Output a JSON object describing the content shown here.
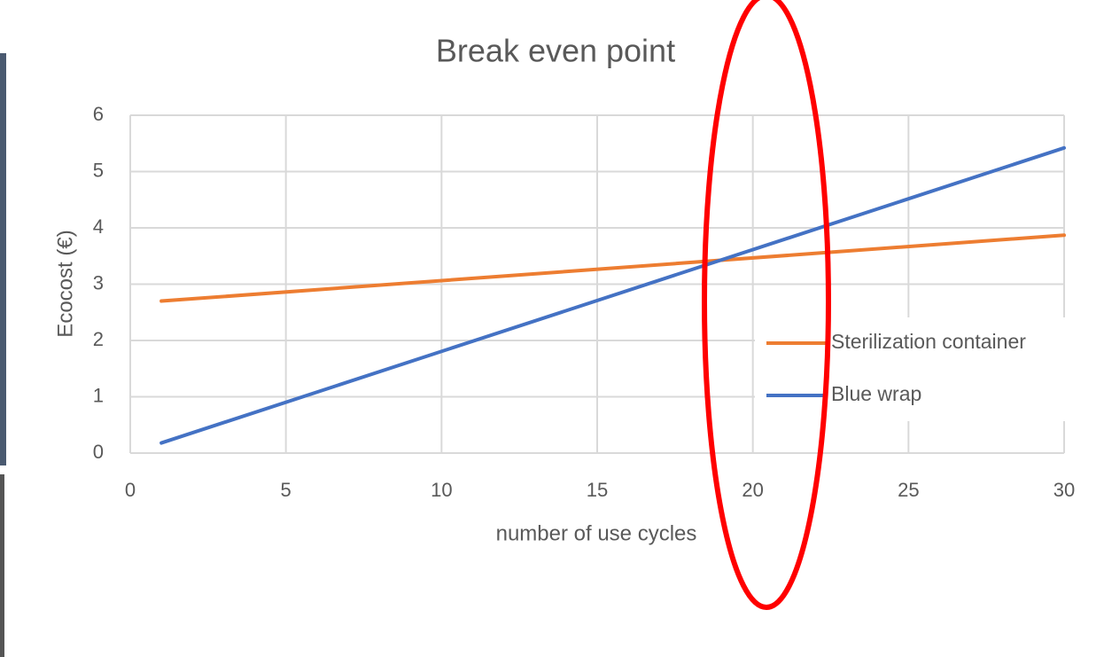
{
  "chart_data": {
    "type": "line",
    "title": "Break even point",
    "x_label": "number of use cycles",
    "y_label": "Ecocost (€)",
    "x": [
      1,
      30
    ],
    "series": [
      {
        "name": "Sterilization container",
        "color": "#ed7d31",
        "values": [
          2.7,
          3.87
        ]
      },
      {
        "name": "Blue wrap",
        "color": "#4472c4",
        "values": [
          0.18,
          5.42
        ]
      }
    ],
    "xlim": [
      0,
      30
    ],
    "xticks": [
      0,
      5,
      10,
      15,
      20,
      25,
      30
    ],
    "ylim": [
      0,
      6
    ],
    "yticks": [
      0,
      1,
      2,
      3,
      4,
      5,
      6
    ],
    "grid": true,
    "legend": "right"
  }
}
